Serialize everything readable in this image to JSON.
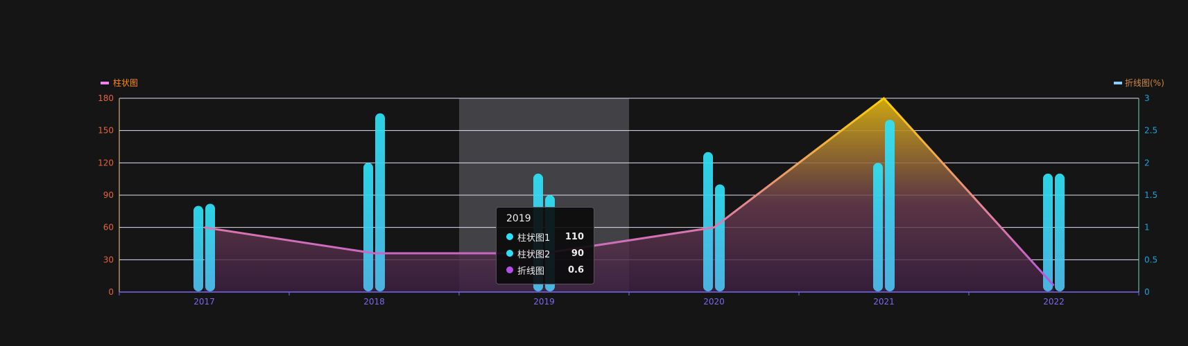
{
  "chart_data": {
    "type": "bar",
    "categories": [
      "2017",
      "2018",
      "2019",
      "2020",
      "2021",
      "2022"
    ],
    "series": [
      {
        "name": "柱状图1",
        "type": "bar",
        "axis": "left",
        "values": [
          80,
          120,
          110,
          130,
          120,
          110
        ]
      },
      {
        "name": "柱状图2",
        "type": "bar",
        "axis": "left",
        "values": [
          82,
          166,
          90,
          100,
          160,
          110
        ]
      },
      {
        "name": "折线图",
        "type": "line",
        "axis": "right",
        "values": [
          1,
          0.6,
          0.6,
          1,
          3,
          0.1
        ]
      }
    ],
    "legend_left": "柱状图",
    "legend_right": "折线图(%)",
    "y_left": {
      "ticks": [
        "0",
        "30",
        "60",
        "90",
        "120",
        "150",
        "180"
      ],
      "range": [
        0,
        180
      ]
    },
    "y_right": {
      "ticks": [
        "0",
        "0.5",
        "1",
        "1.5",
        "2",
        "2.5",
        "3"
      ],
      "range": [
        0,
        3
      ]
    },
    "grid": true,
    "highlighted_category": "2019",
    "tooltip": {
      "title": "2019",
      "rows": [
        {
          "name": "柱状图1",
          "value": "110",
          "color": "#2ee0f7"
        },
        {
          "name": "柱状图2",
          "value": "90",
          "color": "#2ee0f7"
        },
        {
          "name": "折线图",
          "value": "0.6",
          "color": "#b44ee8"
        }
      ]
    },
    "colors": {
      "left_axis_label": "#e8623c",
      "right_axis_label": "#1aa3e0",
      "x_axis": "#7b68ee",
      "legend_text": "#ff8c00"
    }
  }
}
